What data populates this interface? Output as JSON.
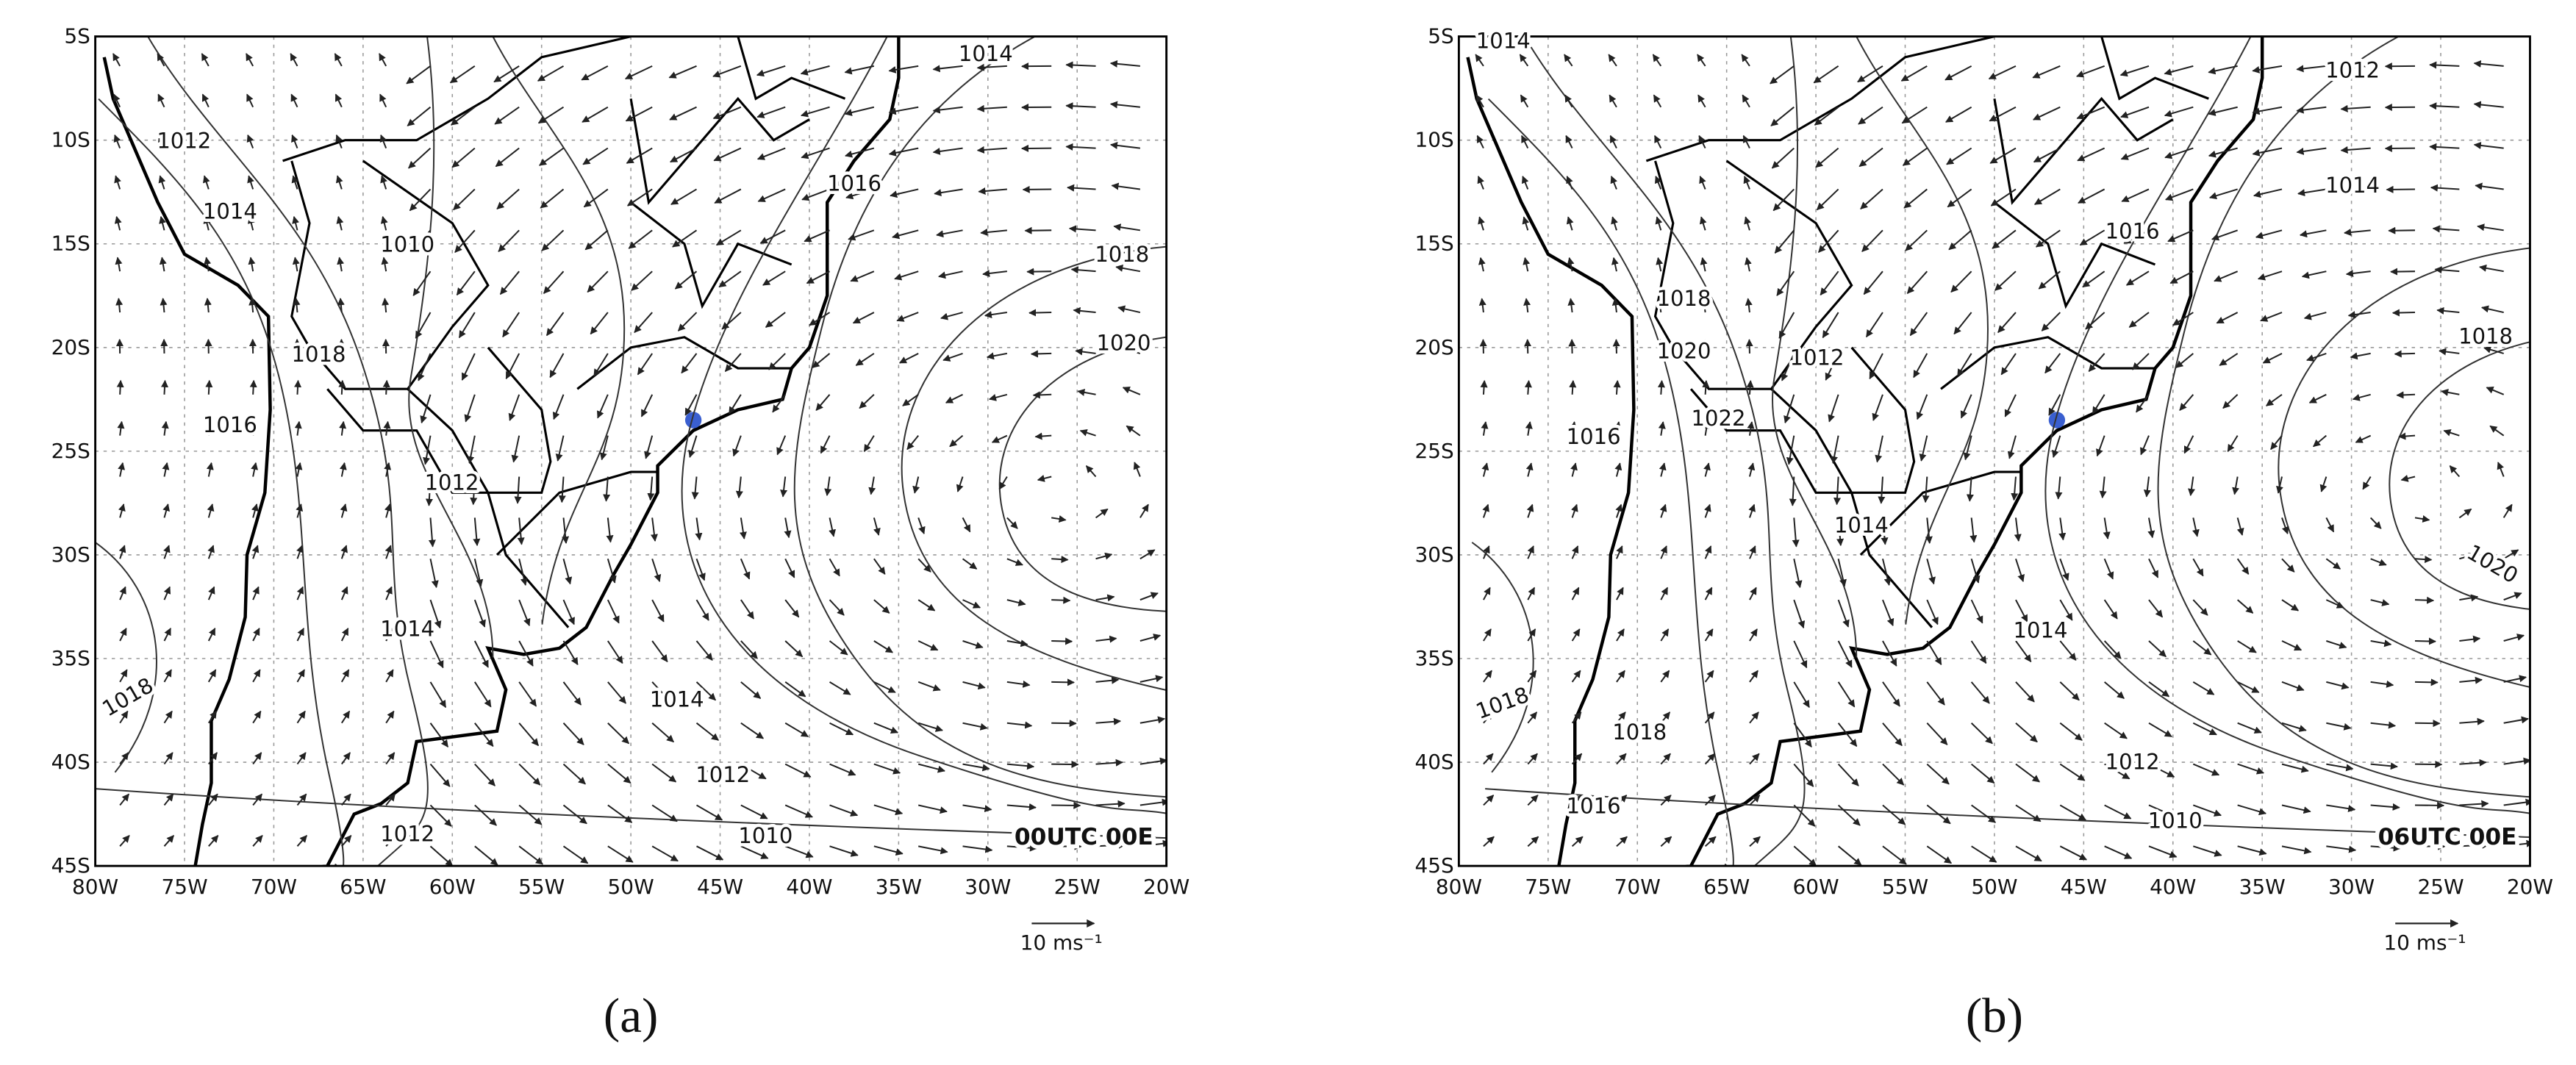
{
  "panels": [
    {
      "caption": "(a)",
      "time_label": "00UTC 00E",
      "scale_label": "10 ms⁻¹",
      "x_ticks": [
        "80W",
        "75W",
        "70W",
        "65W",
        "60W",
        "55W",
        "50W",
        "45W",
        "40W",
        "35W",
        "30W",
        "25W",
        "20W"
      ],
      "y_ticks": [
        "5S",
        "10S",
        "15S",
        "20S",
        "25S",
        "30S",
        "35S",
        "40S",
        "45S"
      ],
      "isobar_labels": [
        "1014",
        "1012",
        "1014",
        "1010",
        "1016",
        "1018",
        "1020",
        "1018",
        "1016",
        "1012",
        "1014",
        "1018",
        "1014",
        "1012",
        "1012",
        "1010"
      ]
    },
    {
      "caption": "(b)",
      "time_label": "06UTC 00E",
      "scale_label": "10 ms⁻¹",
      "x_ticks": [
        "80W",
        "75W",
        "70W",
        "65W",
        "60W",
        "55W",
        "50W",
        "45W",
        "40W",
        "35W",
        "30W",
        "25W",
        "20W"
      ],
      "y_ticks": [
        "5S",
        "10S",
        "15S",
        "20S",
        "25S",
        "30S",
        "35S",
        "40S",
        "45S"
      ],
      "isobar_labels": [
        "1014",
        "1012",
        "1014",
        "1016",
        "1018",
        "1020",
        "1012",
        "1018",
        "1016",
        "1022",
        "1014",
        "1020",
        "1014",
        "1018",
        "1018",
        "1012",
        "1016",
        "1010"
      ]
    }
  ]
}
